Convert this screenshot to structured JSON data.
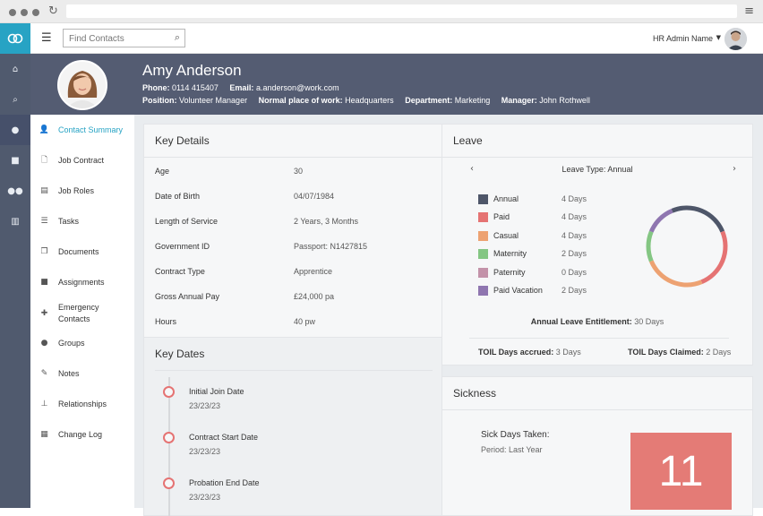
{
  "topbar": {
    "search_placeholder": "Find Contacts",
    "admin_name": "HR Admin Name"
  },
  "profile": {
    "name": "Amy Anderson",
    "phone_label": "Phone:",
    "phone": "0114 415407",
    "email_label": "Email:",
    "email": "a.anderson@work.com",
    "position_label": "Position:",
    "position": "Volunteer Manager",
    "workplace_label": "Normal place of work:",
    "workplace": "Headquarters",
    "department_label": "Department:",
    "department": "Marketing",
    "manager_label": "Manager:",
    "manager": "John Rothwell"
  },
  "sidebar": {
    "items": [
      {
        "label": "Contact Summary",
        "icon": "user-icon",
        "glyph": "👤"
      },
      {
        "label": "Job Contract",
        "icon": "document-icon",
        "glyph": "🗋"
      },
      {
        "label": "Job Roles",
        "icon": "id-card-icon",
        "glyph": "▤"
      },
      {
        "label": "Tasks",
        "icon": "list-icon",
        "glyph": "☰"
      },
      {
        "label": "Documents",
        "icon": "files-icon",
        "glyph": "❐"
      },
      {
        "label": "Assignments",
        "icon": "briefcase-icon",
        "glyph": "■"
      },
      {
        "label": "Emergency Contacts",
        "icon": "medkit-icon",
        "glyph": "✚"
      },
      {
        "label": "Groups",
        "icon": "group-icon",
        "glyph": "●"
      },
      {
        "label": "Notes",
        "icon": "pencil-icon",
        "glyph": "✎"
      },
      {
        "label": "Relationships",
        "icon": "sitemap-icon",
        "glyph": "⊥"
      },
      {
        "label": "Change Log",
        "icon": "calendar-icon",
        "glyph": "▦"
      }
    ]
  },
  "key_details": {
    "title": "Key Details",
    "rows": [
      {
        "label": "Age",
        "value": "30"
      },
      {
        "label": "Date of Birth",
        "value": "04/07/1984"
      },
      {
        "label": "Length of Service",
        "value": "2 Years, 3 Months"
      },
      {
        "label": "Government ID",
        "value": "Passport: N1427815"
      },
      {
        "label": "Contract Type",
        "value": "Apprentice"
      },
      {
        "label": "Gross Annual Pay",
        "value": "£24,000 pa"
      },
      {
        "label": "Hours",
        "value": "40 pw"
      }
    ]
  },
  "key_dates": {
    "title": "Key Dates",
    "items": [
      {
        "title": "Initial Join Date",
        "date": "23/23/23"
      },
      {
        "title": "Contract Start Date",
        "date": "23/23/23"
      },
      {
        "title": "Probation End Date",
        "date": "23/23/23"
      }
    ]
  },
  "leave": {
    "title": "Leave",
    "type_label": "Leave Type: Annual",
    "prev_glyph": "‹",
    "next_glyph": "›",
    "legend": [
      {
        "name": "Annual",
        "days": "4 Days",
        "value": 4,
        "color": "#4e5669"
      },
      {
        "name": "Paid",
        "days": "4 Days",
        "value": 4,
        "color": "#e57373"
      },
      {
        "name": "Casual",
        "days": "4 Days",
        "value": 4,
        "color": "#eda272"
      },
      {
        "name": "Maternity",
        "days": "2 Days",
        "value": 2,
        "color": "#84c683"
      },
      {
        "name": "Paternity",
        "days": "0 Days",
        "value": 0,
        "color": "#c392a9"
      },
      {
        "name": "Paid Vacation",
        "days": "2 Days",
        "value": 2,
        "color": "#8f76b0"
      }
    ],
    "entitlement_label": "Annual Leave Entitlement:",
    "entitlement_value": "30 Days",
    "toil_accrued_label": "TOIL Days accrued:",
    "toil_accrued_value": "3 Days",
    "toil_claimed_label": "TOIL Days Claimed:",
    "toil_claimed_value": "2 Days"
  },
  "sickness": {
    "title": "Sickness",
    "label": "Sick Days Taken:",
    "period": "Period: Last Year",
    "count": "11",
    "box_color": "#e47b76"
  },
  "colors": {
    "accent": "#27a3c4",
    "header_bg": "#545c72",
    "rail_bg": "#505a6e"
  }
}
